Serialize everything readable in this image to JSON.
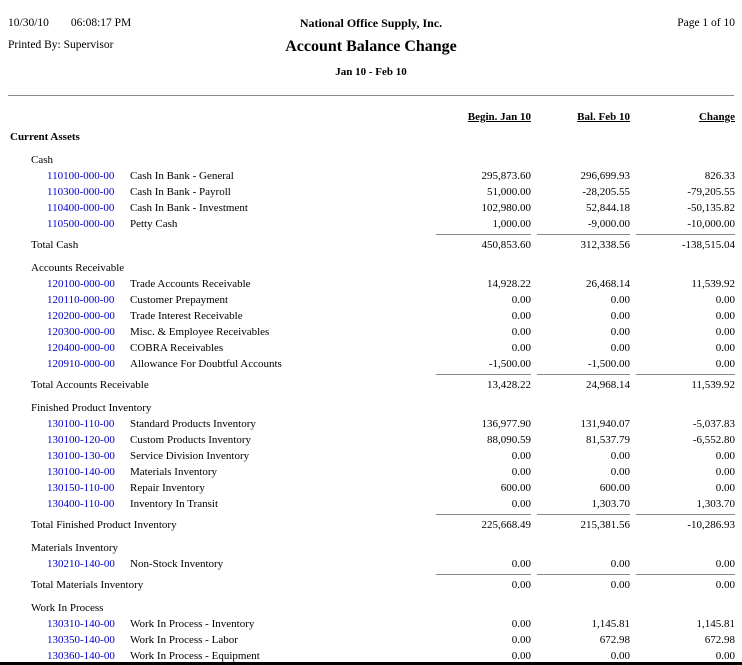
{
  "header": {
    "date": "10/30/10",
    "time": "06:08:17 PM",
    "company": "National Office Supply, Inc.",
    "page": "Page 1 of 10",
    "printed_by": "Printed By: Supervisor",
    "title": "Account Balance Change",
    "subtitle": "Jan 10 - Feb 10"
  },
  "columns": [
    "Begin. Jan 10",
    "Bal. Feb 10",
    "Change"
  ],
  "section_title": "Current Assets",
  "groups": [
    {
      "name": "Cash",
      "rows": [
        {
          "code": "110100-000-00",
          "name": "Cash In Bank - General",
          "values": [
            "295,873.60",
            "296,699.93",
            "826.33"
          ]
        },
        {
          "code": "110300-000-00",
          "name": "Cash In Bank - Payroll",
          "values": [
            "51,000.00",
            "-28,205.55",
            "-79,205.55"
          ]
        },
        {
          "code": "110400-000-00",
          "name": "Cash In Bank - Investment",
          "values": [
            "102,980.00",
            "52,844.18",
            "-50,135.82"
          ]
        },
        {
          "code": "110500-000-00",
          "name": "Petty Cash",
          "values": [
            "1,000.00",
            "-9,000.00",
            "-10,000.00"
          ]
        }
      ],
      "total": {
        "label": "Total Cash",
        "values": [
          "450,853.60",
          "312,338.56",
          "-138,515.04"
        ]
      }
    },
    {
      "name": "Accounts Receivable",
      "rows": [
        {
          "code": "120100-000-00",
          "name": "Trade Accounts Receivable",
          "values": [
            "14,928.22",
            "26,468.14",
            "11,539.92"
          ]
        },
        {
          "code": "120110-000-00",
          "name": "Customer Prepayment",
          "values": [
            "0.00",
            "0.00",
            "0.00"
          ]
        },
        {
          "code": "120200-000-00",
          "name": "Trade Interest Receivable",
          "values": [
            "0.00",
            "0.00",
            "0.00"
          ]
        },
        {
          "code": "120300-000-00",
          "name": "Misc. & Employee Receivables",
          "values": [
            "0.00",
            "0.00",
            "0.00"
          ]
        },
        {
          "code": "120400-000-00",
          "name": "COBRA Receivables",
          "values": [
            "0.00",
            "0.00",
            "0.00"
          ]
        },
        {
          "code": "120910-000-00",
          "name": "Allowance For Doubtful Accounts",
          "values": [
            "-1,500.00",
            "-1,500.00",
            "0.00"
          ]
        }
      ],
      "total": {
        "label": "Total Accounts Receivable",
        "values": [
          "13,428.22",
          "24,968.14",
          "11,539.92"
        ]
      }
    },
    {
      "name": "Finished Product Inventory",
      "rows": [
        {
          "code": "130100-110-00",
          "name": "Standard Products Inventory",
          "values": [
            "136,977.90",
            "131,940.07",
            "-5,037.83"
          ]
        },
        {
          "code": "130100-120-00",
          "name": "Custom Products Inventory",
          "values": [
            "88,090.59",
            "81,537.79",
            "-6,552.80"
          ]
        },
        {
          "code": "130100-130-00",
          "name": "Service Division Inventory",
          "values": [
            "0.00",
            "0.00",
            "0.00"
          ]
        },
        {
          "code": "130100-140-00",
          "name": "Materials Inventory",
          "values": [
            "0.00",
            "0.00",
            "0.00"
          ]
        },
        {
          "code": "130150-110-00",
          "name": "Repair Inventory",
          "values": [
            "600.00",
            "600.00",
            "0.00"
          ]
        },
        {
          "code": "130400-110-00",
          "name": "Inventory In Transit",
          "values": [
            "0.00",
            "1,303.70",
            "1,303.70"
          ]
        }
      ],
      "total": {
        "label": "Total Finished Product Inventory",
        "values": [
          "225,668.49",
          "215,381.56",
          "-10,286.93"
        ]
      }
    },
    {
      "name": "Materials Inventory",
      "rows": [
        {
          "code": "130210-140-00",
          "name": "Non-Stock Inventory",
          "values": [
            "0.00",
            "0.00",
            "0.00"
          ]
        }
      ],
      "total": {
        "label": "Total Materials Inventory",
        "values": [
          "0.00",
          "0.00",
          "0.00"
        ]
      }
    },
    {
      "name": "Work In Process",
      "rows": [
        {
          "code": "130310-140-00",
          "name": "Work In Process - Inventory",
          "values": [
            "0.00",
            "1,145.81",
            "1,145.81"
          ]
        },
        {
          "code": "130350-140-00",
          "name": "Work In Process - Labor",
          "values": [
            "0.00",
            "672.98",
            "672.98"
          ]
        },
        {
          "code": "130360-140-00",
          "name": "Work In Process - Equipment",
          "values": [
            "0.00",
            "0.00",
            "0.00"
          ]
        }
      ],
      "total": null
    }
  ],
  "colors": {
    "account_code_link": "#0000cc",
    "rule_line": "#8a8a8a",
    "bottom_border": "#000000"
  }
}
